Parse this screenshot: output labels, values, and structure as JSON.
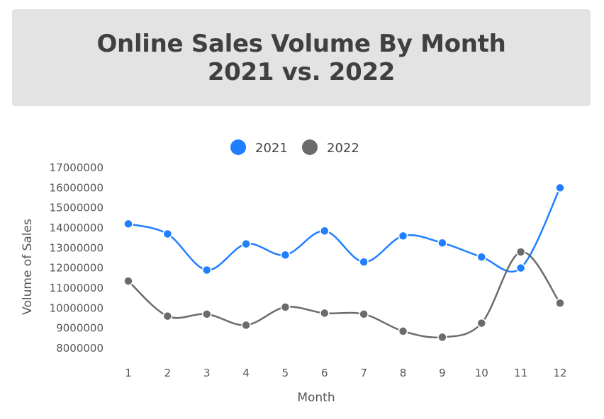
{
  "header": {
    "title_line1": "Online Sales Volume By Month",
    "title_line2": "2021 vs. 2022"
  },
  "chart_data": {
    "type": "line",
    "smooth": true,
    "x": [
      1,
      2,
      3,
      4,
      5,
      6,
      7,
      8,
      9,
      10,
      11,
      12
    ],
    "xlabel": "Month",
    "ylabel": "Volume of Sales",
    "ylim": [
      8000000,
      17000000
    ],
    "yticks": [
      8000000,
      9000000,
      10000000,
      11000000,
      12000000,
      13000000,
      14000000,
      15000000,
      16000000,
      17000000
    ],
    "grid": false,
    "legend_position": "top-center",
    "series": [
      {
        "name": "2021",
        "color": "#1f7fff",
        "values": [
          14200000,
          13700000,
          11900000,
          13200000,
          12650000,
          13850000,
          12300000,
          13600000,
          13250000,
          12550000,
          12000000,
          16000000
        ]
      },
      {
        "name": "2022",
        "color": "#6b6b6b",
        "values": [
          11350000,
          9600000,
          9700000,
          9150000,
          10050000,
          9750000,
          9700000,
          8850000,
          8550000,
          9250000,
          12800000,
          10250000
        ]
      }
    ]
  }
}
